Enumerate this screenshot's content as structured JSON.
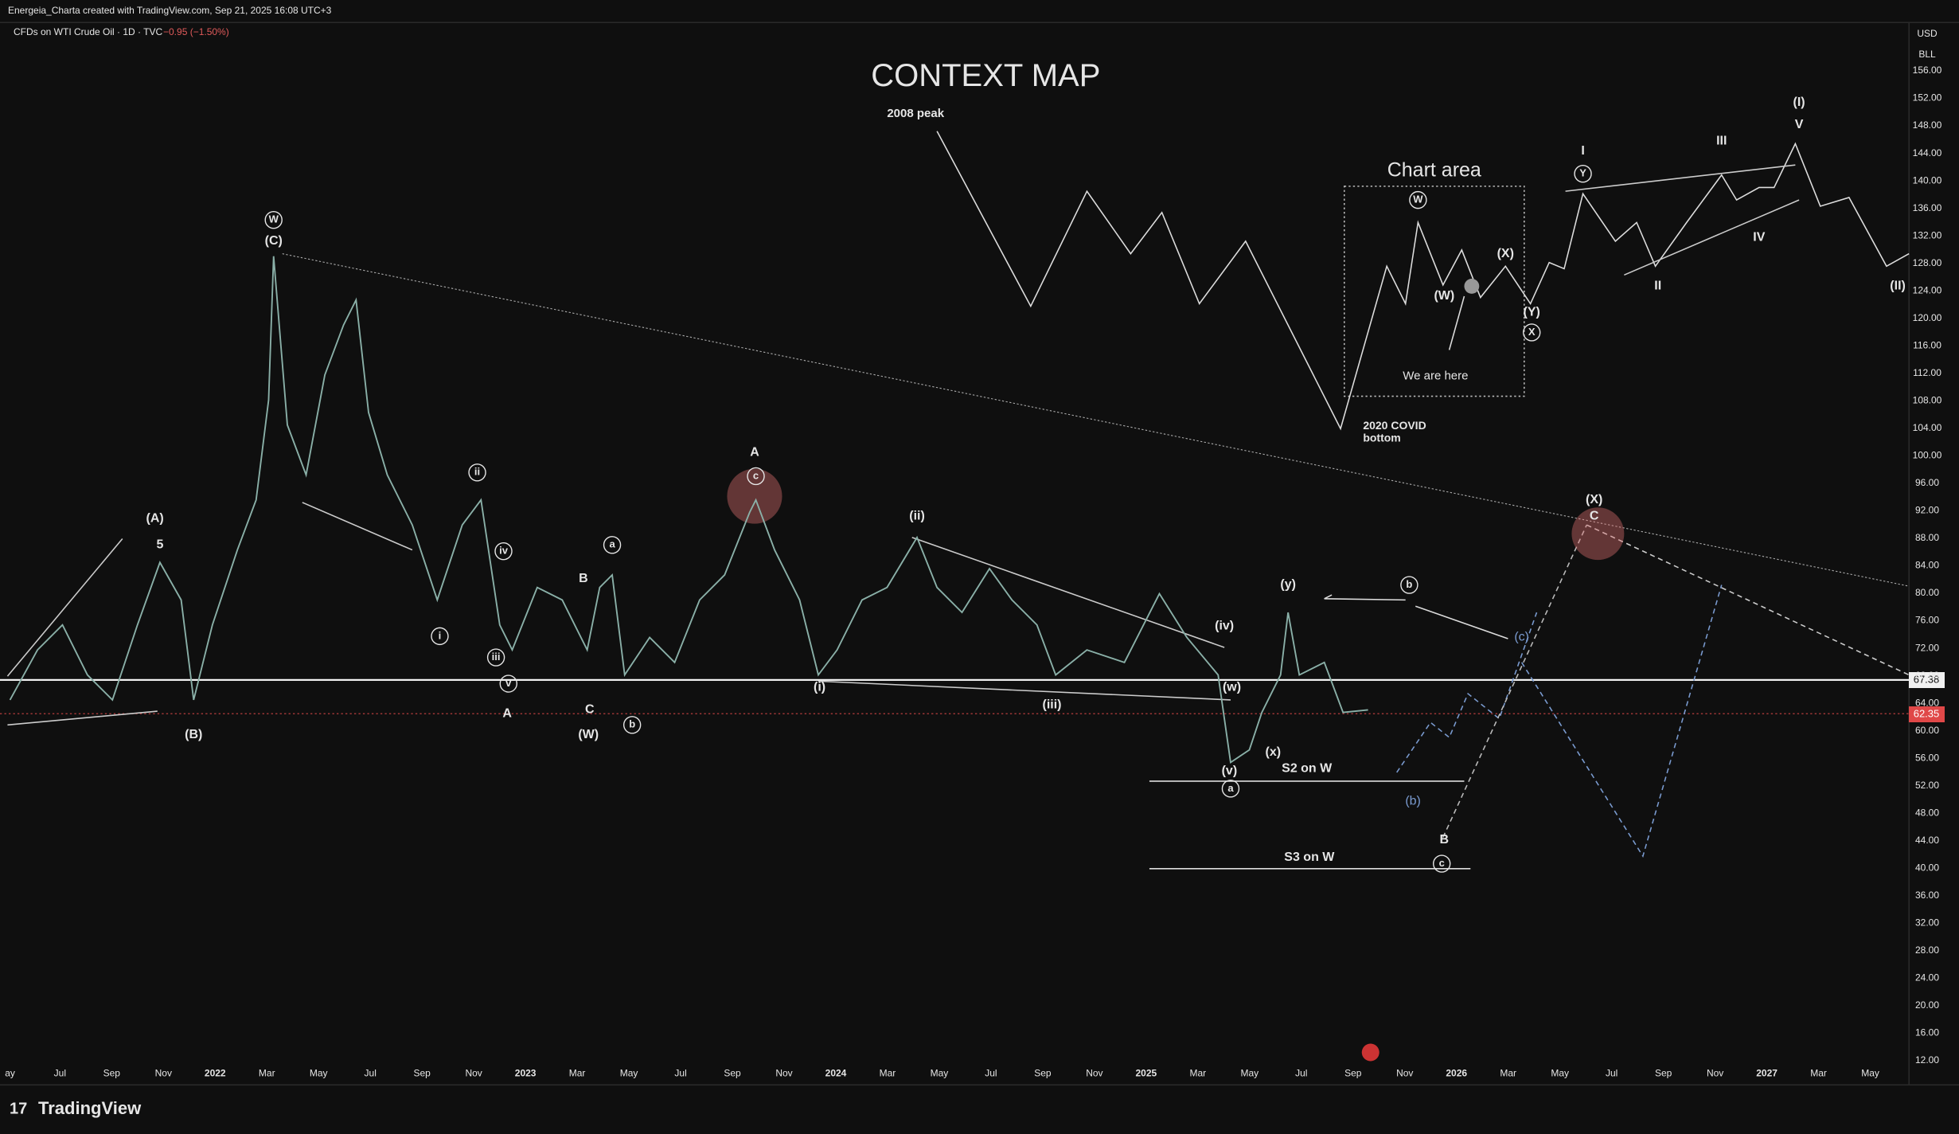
{
  "header": {
    "credit": "Energeia_Charta created with TradingView.com, Sep 21, 2025 16:08 UTC+3",
    "symbol": "CFDs on WTI Crude Oil · 1D · TVC",
    "change": "−0.95 (−1.50%)"
  },
  "price_axis": {
    "currency": "USD",
    "unit": "BLL",
    "ticks": [
      "156.00",
      "152.00",
      "148.00",
      "144.00",
      "140.00",
      "136.00",
      "132.00",
      "128.00",
      "124.00",
      "120.00",
      "116.00",
      "112.00",
      "108.00",
      "104.00",
      "100.00",
      "96.00",
      "92.00",
      "88.00",
      "84.00",
      "80.00",
      "76.00",
      "72.00",
      "68.00",
      "64.00",
      "60.00",
      "56.00",
      "52.00",
      "48.00",
      "44.00",
      "40.00",
      "36.00",
      "32.00",
      "28.00",
      "24.00",
      "20.00",
      "16.00",
      "12.00"
    ],
    "line_label": "67.38",
    "last_label": "62.35"
  },
  "time_axis": {
    "labels": [
      "ay",
      "Jul",
      "Sep",
      "Nov",
      "2022",
      "Mar",
      "May",
      "Jul",
      "Sep",
      "Nov",
      "2023",
      "Mar",
      "May",
      "Jul",
      "Sep",
      "Nov",
      "2024",
      "Mar",
      "May",
      "Jul",
      "Sep",
      "Nov",
      "2025",
      "Mar",
      "May",
      "Jul",
      "Sep",
      "Nov",
      "2026",
      "Mar",
      "May",
      "Jul",
      "Sep",
      "Nov",
      "2027",
      "Mar",
      "May"
    ]
  },
  "annotations": [
    "CONTEXT MAP",
    "2008 peak",
    "Chart area",
    "We are here",
    "2020 COVID",
    "bottom",
    "(A)",
    "5",
    "(B)",
    "W",
    "(C)",
    "ii",
    "iv",
    "i",
    "iii",
    "v",
    "A",
    "B",
    "C",
    "(W)",
    "a",
    "b",
    "A",
    "c",
    "(ii)",
    "(i)",
    "(iii)",
    "(iv)",
    "(w)",
    "(v)",
    "a",
    "(x)",
    "(y)",
    "S2 on W",
    "S3 on W",
    "b",
    "(c)",
    "(b)",
    "B",
    "c",
    "(X)",
    "C",
    "W",
    "(W)",
    "(X)",
    "(Y)",
    "X",
    "I",
    "Y",
    "III",
    "(I)",
    "V",
    "IV",
    "II",
    "(II)"
  ],
  "footer": {
    "logo": "TradingView"
  }
}
